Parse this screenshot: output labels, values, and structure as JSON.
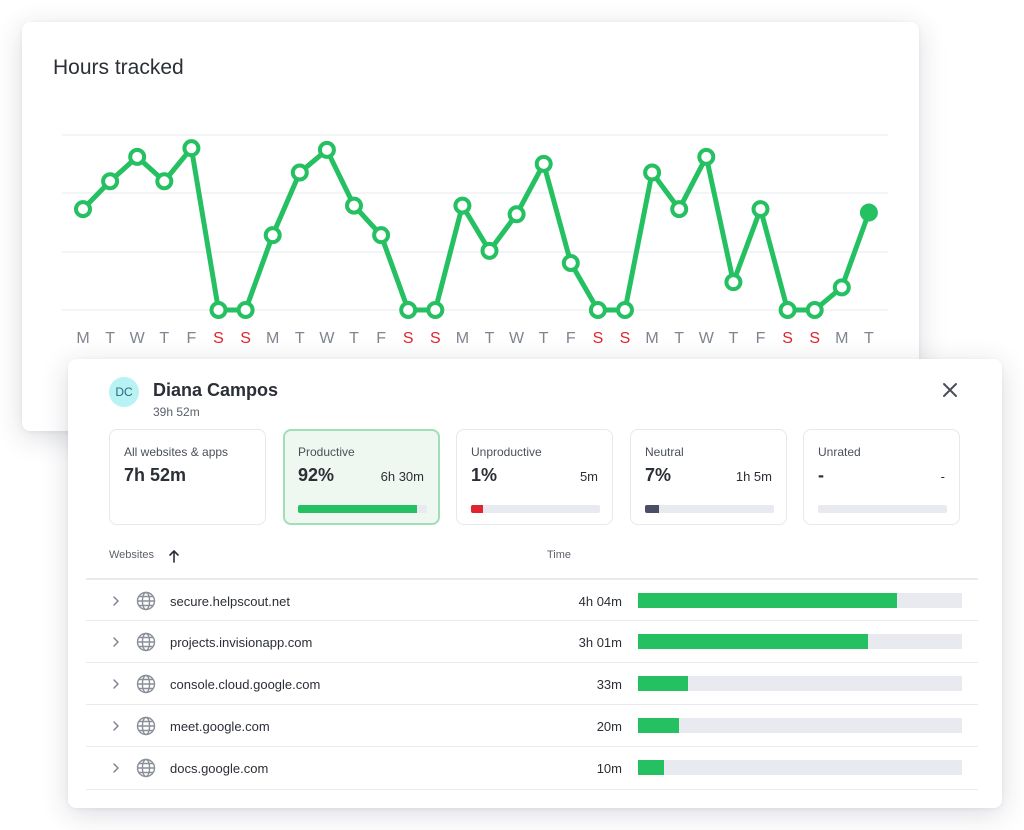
{
  "chart_card": {
    "title": "Hours tracked"
  },
  "chart_data": {
    "type": "line",
    "title": "Hours tracked",
    "x": [
      "M",
      "T",
      "W",
      "T",
      "F",
      "S",
      "S",
      "M",
      "T",
      "W",
      "T",
      "F",
      "S",
      "S",
      "M",
      "T",
      "W",
      "T",
      "F",
      "S",
      "S",
      "M",
      "T",
      "W",
      "T",
      "F",
      "S",
      "S",
      "M",
      "T"
    ],
    "weekend_indices": [
      5,
      6,
      12,
      13,
      19,
      20,
      26,
      27
    ],
    "values": [
      5.8,
      7.4,
      8.8,
      7.4,
      9.3,
      0,
      0,
      4.3,
      7.9,
      9.2,
      6.0,
      4.3,
      0,
      0,
      6.0,
      3.4,
      5.5,
      8.4,
      2.7,
      0,
      0,
      7.9,
      5.8,
      8.8,
      1.6,
      5.8,
      0,
      0,
      1.3,
      5.6
    ],
    "last_point_filled": true,
    "ylim": [
      0,
      10
    ],
    "grid": true,
    "colors": {
      "line": "#25c061",
      "weekend_label": "#e0242f",
      "weekday_label": "#7f858f"
    }
  },
  "detail": {
    "avatar_initials": "DC",
    "user_name": "Diana Campos",
    "user_total": "39h 52m",
    "close_icon": "close-icon",
    "stats": [
      {
        "label": "All websites & apps",
        "pct": "7h 52m",
        "time": "",
        "fill": null,
        "color": ""
      },
      {
        "label": "Productive",
        "pct": "92%",
        "time": "6h 30m",
        "fill": 0.92,
        "color": "#25c061"
      },
      {
        "label": "Unproductive",
        "pct": "1%",
        "time": "5m",
        "fill": 0.09,
        "color": "#e0242f"
      },
      {
        "label": "Neutral",
        "pct": "7%",
        "time": "1h 5m",
        "fill": 0.11,
        "color": "#4a4f63"
      },
      {
        "label": "Unrated",
        "pct": "-",
        "time": "-",
        "fill": 0,
        "color": "#e9eaef"
      }
    ],
    "table": {
      "col_websites": "Websites",
      "col_time": "Time",
      "sort_icon": "arrow-up-icon",
      "rows": [
        {
          "site": "secure.helpscout.net",
          "time": "4h 04m",
          "fill": 0.8
        },
        {
          "site": "projects.invisionapp.com",
          "time": "3h 01m",
          "fill": 0.71
        },
        {
          "site": "console.cloud.google.com",
          "time": "33m",
          "fill": 0.155
        },
        {
          "site": "meet.google.com",
          "time": "20m",
          "fill": 0.125
        },
        {
          "site": "docs.google.com",
          "time": "10m",
          "fill": 0.08
        }
      ]
    }
  }
}
